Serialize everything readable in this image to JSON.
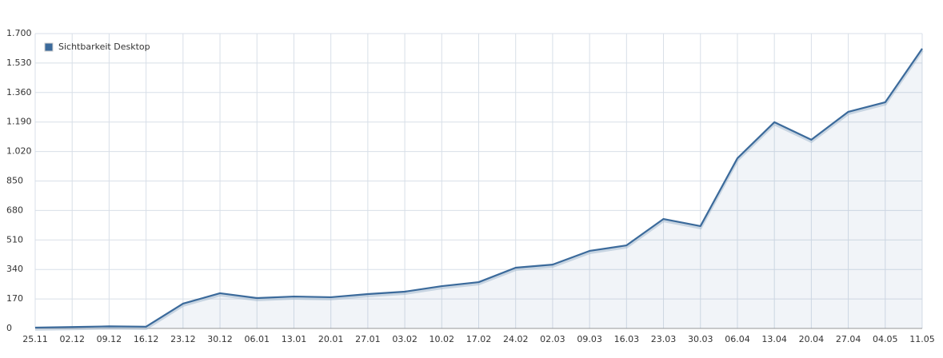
{
  "chart_data": {
    "type": "area",
    "categories": [
      "25.11",
      "02.12",
      "09.12",
      "16.12",
      "23.12",
      "30.12",
      "06.01",
      "13.01",
      "20.01",
      "27.01",
      "03.02",
      "10.02",
      "17.02",
      "24.02",
      "02.03",
      "09.03",
      "16.03",
      "23.03",
      "30.03",
      "06.04",
      "13.04",
      "20.04",
      "27.04",
      "04.05",
      "11.05"
    ],
    "series": [
      {
        "name": "Sichtbarkeit Desktop",
        "color": "#3b6a9b",
        "values": [
          5,
          8,
          12,
          10,
          143,
          203,
          175,
          184,
          180,
          198,
          212,
          244,
          267,
          350,
          368,
          447,
          479,
          631,
          590,
          981,
          1189,
          1088,
          1249,
          1304,
          1613
        ]
      }
    ],
    "ylim": [
      0,
      1700
    ],
    "yticks": [
      0,
      170,
      340,
      510,
      680,
      850,
      {
        "value": 1020,
        "label": "1.020"
      },
      {
        "value": 1190,
        "label": "1.190"
      },
      {
        "value": 1360,
        "label": "1.360"
      },
      {
        "value": 1530,
        "label": "1.530"
      },
      {
        "value": 1700,
        "label": "1.700"
      }
    ],
    "grid": true,
    "legend": "top-left"
  }
}
